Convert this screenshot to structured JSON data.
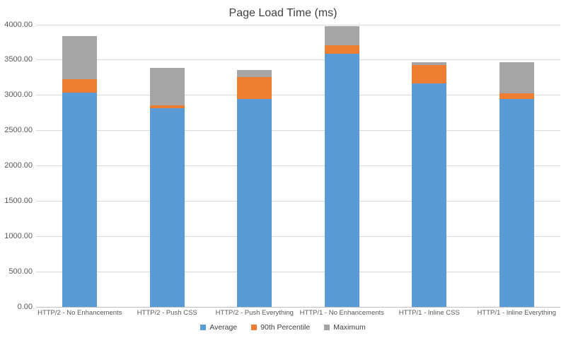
{
  "chart_data": {
    "type": "bar",
    "title": "Page Load Time (ms)",
    "categories": [
      "HTTP/2 - No Enhancements",
      "HTTP/2 - Push CSS",
      "HTTP/2 - Push Everything",
      "HTTP/1 - No Enhancements",
      "HTTP/1 - Inline CSS",
      "HTTP/1 - Inline Everything"
    ],
    "series": [
      {
        "name": "Average",
        "color": "#5B9BD5",
        "values": [
          3035,
          2815,
          2950,
          3590,
          3170,
          2950
        ]
      },
      {
        "name": "90th Percentile",
        "color": "#ED7D31",
        "values": [
          3230,
          2860,
          3255,
          3705,
          3430,
          3030
        ]
      },
      {
        "name": "Maximum",
        "color": "#A5A5A5",
        "values": [
          3840,
          3385,
          3355,
          3980,
          3470,
          3470
        ]
      }
    ],
    "xlabel": "",
    "ylabel": "",
    "ylim": [
      0,
      4000
    ],
    "y_ticks": [
      0,
      500,
      1000,
      1500,
      2000,
      2500,
      3000,
      3500,
      4000
    ],
    "y_tick_labels": [
      "0.00",
      "500.00",
      "1000.00",
      "1500.00",
      "2000.00",
      "2500.00",
      "3000.00",
      "3500.00",
      "4000.00"
    ],
    "grid": true,
    "bar_style": "overlapped",
    "legend_position": "bottom",
    "colors": {
      "gridline": "#D9D9D9",
      "axis_line": "#BFBFBF",
      "tick_text": "#595959",
      "title_text": "#404040",
      "legend_text": "#404040",
      "background": "#FFFFFF"
    }
  }
}
